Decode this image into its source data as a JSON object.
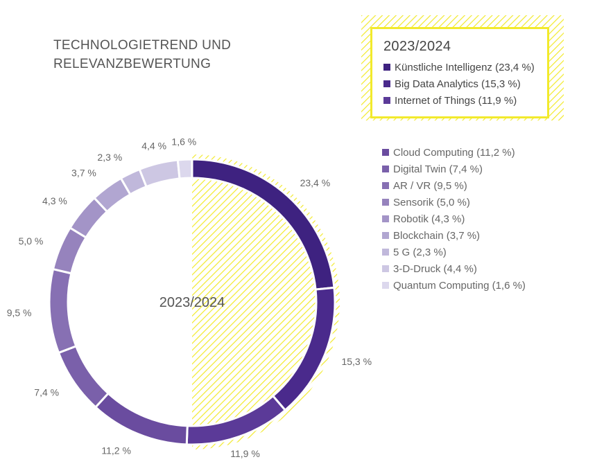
{
  "header": {
    "title_line1": "TECHNOLOGIETREND UND",
    "title_line2": "RELEVANZBEWERTUNG"
  },
  "main_legend": {
    "title": "2023/2024",
    "items": [
      {
        "label": "Künstliche Intelligenz (23,4 %)",
        "color": "#3e2280"
      },
      {
        "label": "Big Data Analytics (15,3 %)",
        "color": "#4a2a8c"
      },
      {
        "label": "Internet of Things (11,9 %)",
        "color": "#5b3a98"
      }
    ]
  },
  "side_legend": {
    "items": [
      {
        "label": "Cloud Computing (11,2 %)",
        "color": "#6a4c9f"
      },
      {
        "label": "Digital Twin (7,4 %)",
        "color": "#7a60aa"
      },
      {
        "label": "AR / VR (9,5 %)",
        "color": "#8770b3"
      },
      {
        "label": "Sensorik (5,0 %)",
        "color": "#9683bd"
      },
      {
        "label": "Robotik (4,3 %)",
        "color": "#a394c7"
      },
      {
        "label": "Blockchain (3,7 %)",
        "color": "#b1a6d1"
      },
      {
        "label": "5 G (2,3 %)",
        "color": "#c0b8db"
      },
      {
        "label": "3-D-Druck (4,4 %)",
        "color": "#cdc7e3"
      },
      {
        "label": "Quantum Computing (1,6 %)",
        "color": "#dcd8ed"
      }
    ]
  },
  "colors": {
    "hatch": "#f2ea2c",
    "ring_gap": "#ffffff"
  },
  "chart_data": {
    "type": "pie",
    "center_label": "2023/2024",
    "categories": [
      "Künstliche Intelligenz",
      "Big Data Analytics",
      "Internet of Things",
      "Cloud Computing",
      "Digital Twin",
      "AR / VR",
      "Sensorik",
      "Robotik",
      "Blockchain",
      "5 G",
      "3-D-Druck",
      "Quantum Computing"
    ],
    "values": [
      23.4,
      15.3,
      11.9,
      11.2,
      7.4,
      9.5,
      5.0,
      4.3,
      3.7,
      2.3,
      4.4,
      1.6
    ],
    "data_labels": [
      "23,4 %",
      "15,3 %",
      "11,9 %",
      "11,2 %",
      "7,4 %",
      "9,5 %",
      "5,0 %",
      "4,3 %",
      "3,7 %",
      "2,3 %",
      "4,4 %",
      "1,6 %"
    ],
    "colors": [
      "#3e2280",
      "#4a2a8c",
      "#5b3a98",
      "#6a4c9f",
      "#7a60aa",
      "#8770b3",
      "#9683bd",
      "#a394c7",
      "#b1a6d1",
      "#c0b8db",
      "#cdc7e3",
      "#dcd8ed"
    ],
    "style": "donut"
  }
}
